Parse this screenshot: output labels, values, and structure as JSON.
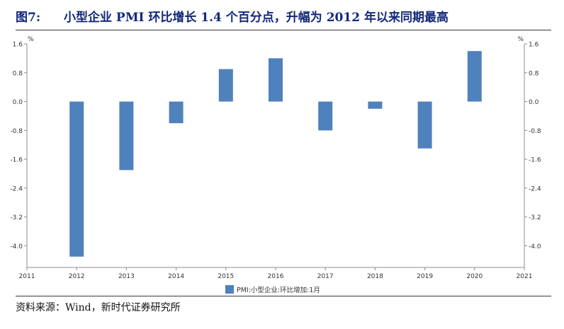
{
  "figure": {
    "number": "图7:",
    "title": "小型企业 PMI 环比增长 1.4 个百分点，升幅为 2012 年以来同期最高"
  },
  "source": "资料来源：Wind，新时代证券研究所",
  "chart_data": {
    "type": "bar",
    "x": [
      2012,
      2013,
      2014,
      2015,
      2016,
      2017,
      2018,
      2019,
      2020
    ],
    "values": [
      -4.3,
      -1.9,
      -0.6,
      0.9,
      1.2,
      -0.8,
      -0.2,
      -1.3,
      1.4
    ],
    "series": [
      {
        "name": "PMI:小型企业:环比增加:1月",
        "values": [
          -4.3,
          -1.9,
          -0.6,
          0.9,
          1.2,
          -0.8,
          -0.2,
          -1.3,
          1.4
        ],
        "color": "#4f81bd"
      }
    ],
    "xlim": [
      2011,
      2021
    ],
    "x_ticks": [
      "2011",
      "2012",
      "2013",
      "2014",
      "2015",
      "2016",
      "2017",
      "2018",
      "2019",
      "2020",
      "2021"
    ],
    "ylim": [
      -4.6,
      1.6
    ],
    "y_ticks": [
      "1.6",
      "0.8",
      "0.0",
      "-0.8",
      "-1.6",
      "-2.4",
      "-3.2",
      "-4.0"
    ],
    "y_unit_left": "%",
    "y_unit_right": "%",
    "xlabel": "",
    "ylabel": "",
    "grid": false,
    "legend_position": "bottom-center",
    "colors": {
      "bar": "#4f81bd",
      "axis": "#8c8c8c",
      "tick_text": "#333333"
    }
  }
}
